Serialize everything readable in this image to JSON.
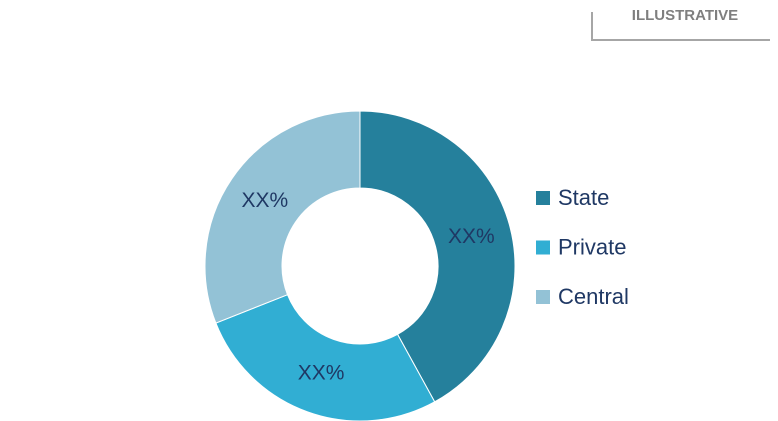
{
  "chart_data": {
    "type": "donut",
    "tag": "ILLUSTRATIVE",
    "categories": [
      "State",
      "Private",
      "Central"
    ],
    "values": [
      42,
      27,
      31
    ],
    "value_labels": [
      "XX%",
      "XX%",
      "XX%"
    ],
    "colors": [
      "#25809c",
      "#31aed3",
      "#93c2d6"
    ],
    "legend": "right"
  }
}
